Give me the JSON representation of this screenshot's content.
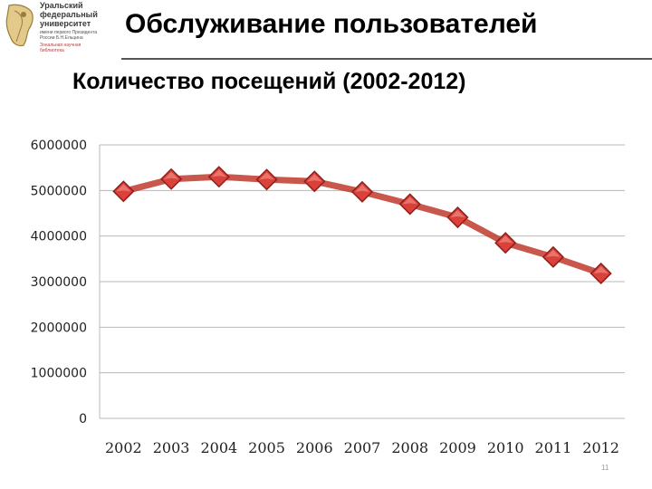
{
  "logo": {
    "line1": "Уральский",
    "line2": "федеральный",
    "line3": "университет",
    "line4": "имени первого Президента",
    "line5": "России Б.Н.Ельцина",
    "line6": "Зональная научная",
    "line7": "библиотека"
  },
  "header": {
    "title": "Обслуживание пользователей",
    "subtitle": "Количество посещений (2002-2012)"
  },
  "page_number": "11",
  "chart_data": {
    "type": "line",
    "title": "",
    "xlabel": "",
    "ylabel": "",
    "x": [
      "2002",
      "2003",
      "2004",
      "2005",
      "2006",
      "2007",
      "2008",
      "2009",
      "2010",
      "2011",
      "2012"
    ],
    "series": [
      {
        "values": [
          4980000,
          5250000,
          5300000,
          5240000,
          5200000,
          4970000,
          4700000,
          4410000,
          3850000,
          3540000,
          3180000
        ],
        "color": "#c0392b",
        "marker": "diamond"
      }
    ],
    "ylim": [
      0,
      6000000
    ],
    "yticks": [
      0,
      1000000,
      2000000,
      3000000,
      4000000,
      5000000,
      6000000
    ],
    "grid": true,
    "legend": "none"
  }
}
